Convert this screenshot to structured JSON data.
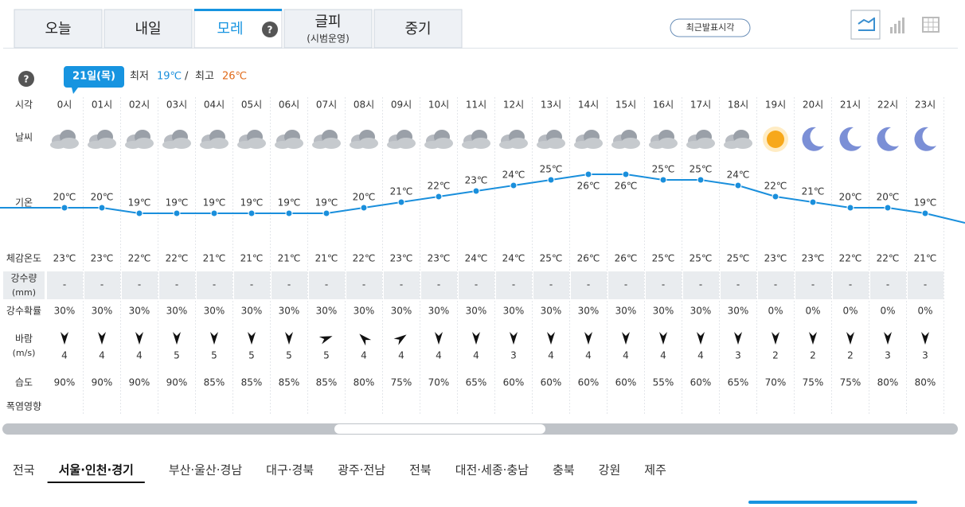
{
  "tabs": [
    {
      "label": "오늘"
    },
    {
      "label": "내일"
    },
    {
      "label": "모레"
    },
    {
      "label": "글피",
      "sub": "(시범운영)"
    },
    {
      "label": "중기"
    }
  ],
  "active_tab": 2,
  "latest_button": "최근발표시각",
  "date_badge": "21일(목)",
  "min_label": "최저",
  "min_value": "19℃",
  "separator": "/",
  "max_label": "최고",
  "max_value": "26℃",
  "row_labels": {
    "time": "시각",
    "weather": "날씨",
    "temp": "기온",
    "feel": "체감온도",
    "precip": "강수량",
    "precip_unit": "(mm)",
    "prob": "강수확률",
    "wind": "바람",
    "wind_unit": "(m/s)",
    "humidity": "습도",
    "heat": "폭염영향"
  },
  "hours": [
    "0시",
    "01시",
    "02시",
    "03시",
    "04시",
    "05시",
    "06시",
    "07시",
    "08시",
    "09시",
    "10시",
    "11시",
    "12시",
    "13시",
    "14시",
    "15시",
    "16시",
    "17시",
    "18시",
    "19시",
    "20시",
    "21시",
    "22시",
    "23시"
  ],
  "temperature": [
    20,
    20,
    19,
    19,
    19,
    19,
    19,
    19,
    20,
    21,
    22,
    23,
    24,
    25,
    26,
    26,
    25,
    25,
    24,
    22,
    21,
    20,
    20,
    19
  ],
  "temperature_labels": [
    "20℃",
    "20℃",
    "19℃",
    "19℃",
    "19℃",
    "19℃",
    "19℃",
    "19℃",
    "20℃",
    "21℃",
    "22℃",
    "23℃",
    "24℃",
    "25℃",
    "26℃",
    "26℃",
    "25℃",
    "25℃",
    "24℃",
    "22℃",
    "21℃",
    "20℃",
    "20℃",
    "19℃"
  ],
  "feels_like": [
    "23℃",
    "23℃",
    "22℃",
    "22℃",
    "21℃",
    "21℃",
    "21℃",
    "21℃",
    "22℃",
    "23℃",
    "23℃",
    "24℃",
    "24℃",
    "25℃",
    "26℃",
    "26℃",
    "25℃",
    "25℃",
    "25℃",
    "23℃",
    "23℃",
    "22℃",
    "22℃",
    "21℃"
  ],
  "precipitation": [
    "-",
    "-",
    "-",
    "-",
    "-",
    "-",
    "-",
    "-",
    "-",
    "-",
    "-",
    "-",
    "-",
    "-",
    "-",
    "-",
    "-",
    "-",
    "-",
    "-",
    "-",
    "-",
    "-",
    "-"
  ],
  "precip_prob": [
    "30%",
    "30%",
    "30%",
    "30%",
    "30%",
    "30%",
    "30%",
    "30%",
    "30%",
    "30%",
    "30%",
    "30%",
    "30%",
    "30%",
    "30%",
    "30%",
    "30%",
    "30%",
    "30%",
    "0%",
    "0%",
    "0%",
    "0%",
    "0%"
  ],
  "wind_speed": [
    4,
    4,
    4,
    5,
    5,
    5,
    5,
    5,
    4,
    4,
    4,
    4,
    3,
    4,
    4,
    4,
    4,
    4,
    3,
    2,
    2,
    2,
    3,
    3
  ],
  "humidity": [
    "90%",
    "90%",
    "90%",
    "90%",
    "85%",
    "85%",
    "85%",
    "85%",
    "80%",
    "75%",
    "70%",
    "65%",
    "60%",
    "60%",
    "60%",
    "60%",
    "55%",
    "60%",
    "65%",
    "70%",
    "75%",
    "75%",
    "80%",
    "80%"
  ],
  "regions": [
    "전국",
    "서울·인천·경기",
    "부산·울산·경남",
    "대구·경북",
    "광주·전남",
    "전북",
    "대전·세종·충남",
    "충북",
    "강원",
    "제주"
  ],
  "active_region": 1
}
